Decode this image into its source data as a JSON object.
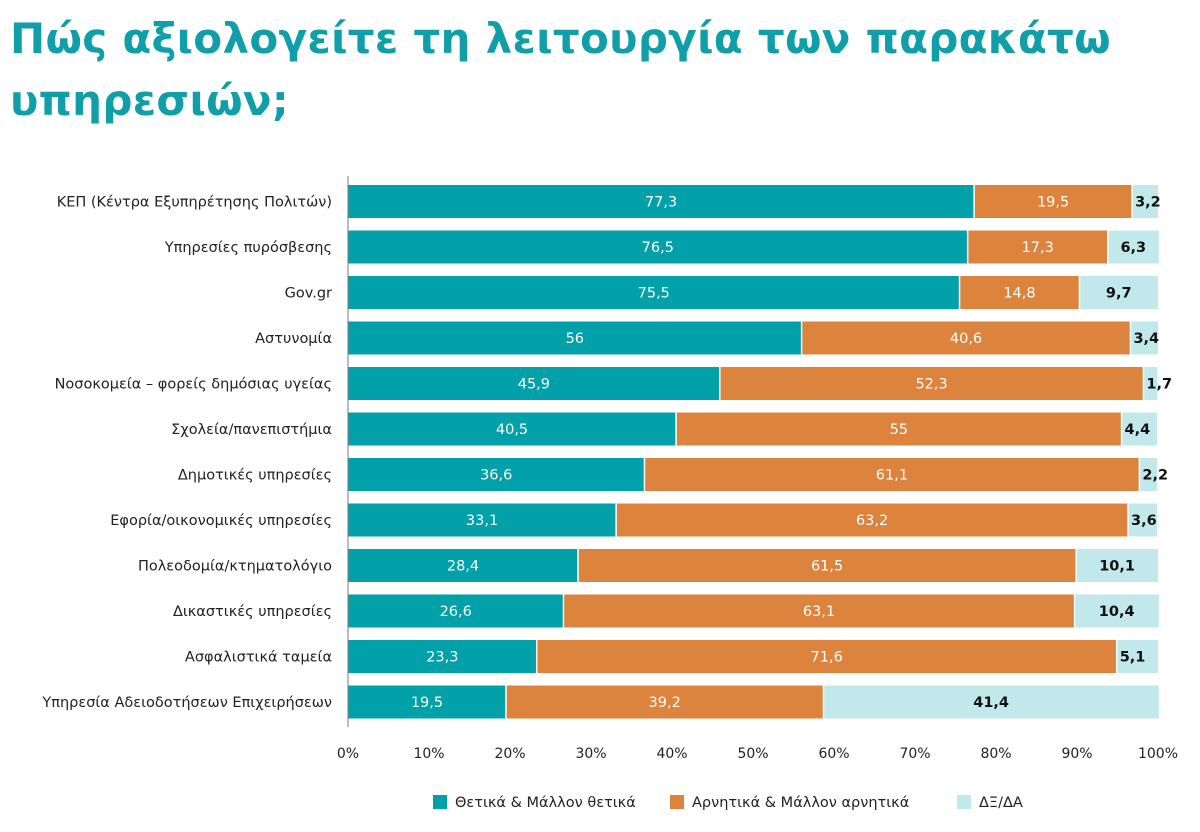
{
  "title": "Πώς αξιολογείτε τη λειτουργία των παρακάτω υπηρεσιών;",
  "chart_data": {
    "type": "bar",
    "orientation": "horizontal",
    "stacked": true,
    "title": "Πώς αξιολογείτε τη λειτουργία των παρακάτω υπηρεσιών;",
    "categories": [
      "ΚΕΠ (Κέντρα Εξυπηρέτησης Πολιτών)",
      "Υπηρεσίες πυρόσβεσης",
      "Gov.gr",
      "Αστυνομία",
      "Νοσοκομεία – φορείς δημόσιας υγείας",
      "Σχολεία/πανεπιστήμια",
      "Δημοτικές υπηρεσίες",
      "Εφορία/οικονομικές υπηρεσίες",
      "Πολεοδομία/κτηματολόγιο",
      "Δικαστικές υπηρεσίες",
      "Ασφαλιστικά ταμεία",
      "Υπηρεσία Αδειοδοτήσεων Επιχειρήσεων"
    ],
    "series": [
      {
        "name": "Θετικά & Μάλλον θετικά",
        "color": "#02a0a9",
        "labels": [
          "77,3",
          "76,5",
          "75,5",
          "56",
          "45,9",
          "40,5",
          "36,6",
          "33,1",
          "28,4",
          "26,6",
          "23,3",
          "19,5"
        ],
        "values": [
          77.3,
          76.5,
          75.5,
          56,
          45.9,
          40.5,
          36.6,
          33.1,
          28.4,
          26.6,
          23.3,
          19.5
        ]
      },
      {
        "name": "Αρνητικά & Μάλλον αρνητικά",
        "color": "#dc843d",
        "labels": [
          "19,5",
          "17,3",
          "14,8",
          "40,6",
          "52,3",
          "55",
          "61,1",
          "63,2",
          "61,5",
          "63,1",
          "71,6",
          "39,2"
        ],
        "values": [
          19.5,
          17.3,
          14.8,
          40.6,
          52.3,
          55,
          61.1,
          63.2,
          61.5,
          63.1,
          71.6,
          39.2
        ]
      },
      {
        "name": "ΔΞ/ΔΑ",
        "color": "#c1e9eb",
        "labels": [
          "3,2",
          "6,3",
          "9,7",
          "3,4",
          "1,7",
          "4,4",
          "2,2",
          "3,6",
          "10,1",
          "10,4",
          "5,1",
          "41,4"
        ],
        "values": [
          3.2,
          6.3,
          9.7,
          3.4,
          1.7,
          4.4,
          2.2,
          3.6,
          10.1,
          10.4,
          5.1,
          41.4
        ]
      }
    ],
    "xlim": [
      0,
      100
    ],
    "xticks": [
      "0%",
      "10%",
      "20%",
      "30%",
      "40%",
      "50%",
      "60%",
      "70%",
      "80%",
      "90%",
      "100%"
    ],
    "legend": "bottom-center"
  }
}
